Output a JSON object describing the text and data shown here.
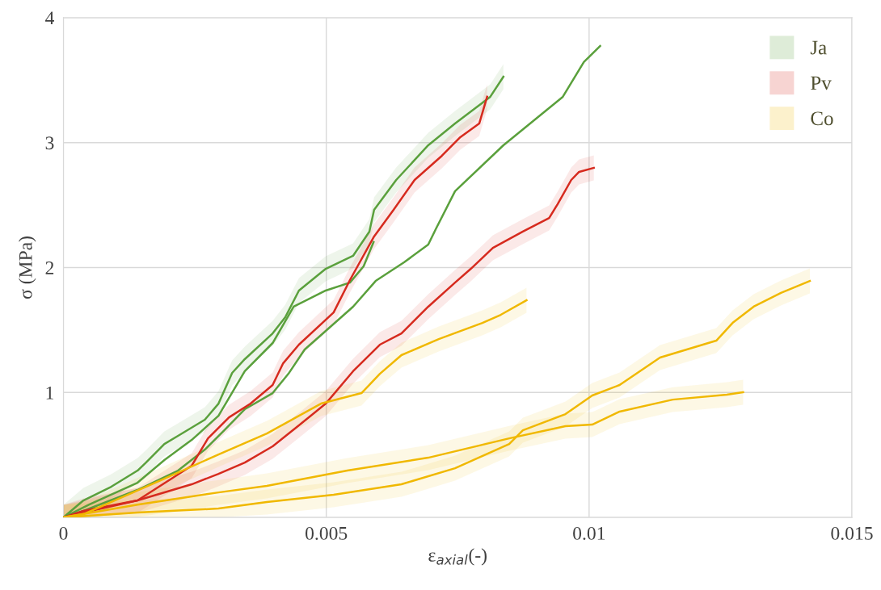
{
  "chart_data": {
    "type": "line",
    "xlabel": "ε$_{axial}$(-)",
    "ylabel": "σ (MPa)",
    "xlim": [
      0,
      0.015
    ],
    "ylim": [
      0,
      4
    ],
    "xticks": [
      0,
      0.005,
      0.01,
      0.015
    ],
    "yticks": [
      {
        "value": 0,
        "label": null
      },
      1,
      2,
      3,
      4
    ],
    "grid": true,
    "legend": "top right",
    "series": [
      {
        "name": "Ja",
        "color": "#5aa03c",
        "x": [
          0,
          0.00038,
          0.00091,
          0.00141,
          0.00157,
          0.00192,
          0.00218,
          0.00269,
          0.00295,
          0.00321,
          0.00345,
          0.00398,
          0.00422,
          0.00448,
          0.00499,
          0.00551,
          0.00582,
          0.00591,
          0.00633,
          0.00694,
          0.00745,
          0.00812,
          0.00837
        ],
        "values": [
          0,
          0.136,
          0.246,
          0.375,
          0.439,
          0.588,
          0.653,
          0.782,
          0.911,
          1.157,
          1.267,
          1.473,
          1.603,
          1.816,
          1.99,
          2.094,
          2.288,
          2.462,
          2.701,
          2.979,
          3.153,
          3.367,
          3.528
        ],
        "lower": [
          0,
          0.036,
          0.146,
          0.275,
          0.339,
          0.488,
          0.553,
          0.682,
          0.811,
          1.057,
          1.167,
          1.373,
          1.503,
          1.716,
          1.89,
          1.994,
          2.188,
          2.362,
          2.601,
          2.879,
          3.053,
          3.267,
          3.428
        ],
        "upper": [
          0.1,
          0.236,
          0.346,
          0.475,
          0.539,
          0.688,
          0.753,
          0.882,
          1.011,
          1.257,
          1.367,
          1.573,
          1.703,
          1.916,
          2.09,
          2.194,
          2.388,
          2.562,
          2.801,
          3.079,
          3.253,
          3.467,
          3.628
        ]
      },
      {
        "color": "#5aa03c",
        "x": [
          0,
          0.00049,
          0.00141,
          0.00192,
          0.00244,
          0.00295,
          0.00345,
          0.00398,
          0.00438,
          0.00499,
          0.00545,
          0.00571,
          0.0059
        ],
        "values": [
          0,
          0.103,
          0.278,
          0.459,
          0.62,
          0.814,
          1.17,
          1.396,
          1.687,
          1.816,
          1.88,
          2.01,
          2.204
        ]
      },
      {
        "color": "#5aa03c",
        "x": [
          0,
          0.00038,
          0.00141,
          0.00218,
          0.00269,
          0.00306,
          0.00345,
          0.00398,
          0.00428,
          0.00459,
          0.00499,
          0.00551,
          0.00594,
          0.00648,
          0.00694,
          0.00709,
          0.00745,
          0.00837,
          0.0095,
          0.0099,
          0.01021
        ],
        "values": [
          0,
          0.052,
          0.22,
          0.375,
          0.543,
          0.698,
          0.866,
          0.995,
          1.15,
          1.344,
          1.493,
          1.687,
          1.893,
          2.042,
          2.184,
          2.313,
          2.611,
          2.979,
          3.367,
          3.645,
          3.774
        ]
      },
      {
        "name": "Pv",
        "color": "#d62a1e",
        "x": [
          0,
          0.00038,
          0.00141,
          0.00244,
          0.00275,
          0.00315,
          0.00356,
          0.00398,
          0.00418,
          0.00448,
          0.00514,
          0.00545,
          0.00591,
          0.00628,
          0.00668,
          0.0072,
          0.00755,
          0.00791,
          0.00806
        ],
        "values": [
          0,
          0.052,
          0.136,
          0.414,
          0.633,
          0.801,
          0.911,
          1.06,
          1.234,
          1.383,
          1.641,
          1.9,
          2.249,
          2.462,
          2.701,
          2.895,
          3.044,
          3.153,
          3.367
        ],
        "lower": [
          0,
          0,
          0.036,
          0.314,
          0.533,
          0.701,
          0.811,
          0.96,
          1.134,
          1.283,
          1.541,
          1.8,
          2.149,
          2.362,
          2.601,
          2.795,
          2.944,
          3.053,
          3.267
        ],
        "upper": [
          0.1,
          0.152,
          0.236,
          0.514,
          0.733,
          0.901,
          1.011,
          1.16,
          1.334,
          1.483,
          1.741,
          2.0,
          2.349,
          2.562,
          2.801,
          2.995,
          3.144,
          3.253,
          3.467
        ]
      },
      {
        "color": "#d62a1e",
        "x": [
          0,
          0.00038,
          0.00141,
          0.00244,
          0.00295,
          0.00345,
          0.00398,
          0.00448,
          0.00499,
          0.00551,
          0.00602,
          0.00643,
          0.00694,
          0.00745,
          0.00775,
          0.00817,
          0.00874,
          0.00924,
          0.0094,
          0.00966,
          0.00981,
          0.01009
        ],
        "values": [
          0,
          0.039,
          0.136,
          0.265,
          0.349,
          0.439,
          0.569,
          0.737,
          0.911,
          1.17,
          1.383,
          1.473,
          1.687,
          1.88,
          1.99,
          2.158,
          2.288,
          2.397,
          2.507,
          2.701,
          2.766,
          2.798
        ],
        "lower": [
          0,
          0,
          0.036,
          0.165,
          0.249,
          0.339,
          0.469,
          0.637,
          0.811,
          1.07,
          1.283,
          1.373,
          1.587,
          1.78,
          1.89,
          2.058,
          2.188,
          2.297,
          2.407,
          2.601,
          2.666,
          2.698
        ],
        "upper": [
          0.1,
          0.139,
          0.236,
          0.365,
          0.449,
          0.539,
          0.669,
          0.837,
          1.011,
          1.27,
          1.483,
          1.573,
          1.787,
          1.98,
          2.09,
          2.258,
          2.388,
          2.497,
          2.607,
          2.801,
          2.866,
          2.898
        ]
      },
      {
        "name": "Co",
        "color": "#f0b800",
        "x": [
          0,
          0.00038,
          0.00192,
          0.00295,
          0.00387,
          0.0049,
          0.00567,
          0.00602,
          0.00643,
          0.00714,
          0.00797,
          0.00832,
          0.00881
        ],
        "values": [
          0,
          0.026,
          0.31,
          0.504,
          0.672,
          0.911,
          0.995,
          1.15,
          1.299,
          1.428,
          1.557,
          1.622,
          1.738
        ],
        "lower": [
          0,
          0,
          0.21,
          0.404,
          0.572,
          0.811,
          0.895,
          1.05,
          1.199,
          1.328,
          1.457,
          1.522,
          1.638
        ],
        "upper": [
          0.1,
          0.126,
          0.41,
          0.604,
          0.772,
          1.011,
          1.095,
          1.25,
          1.399,
          1.528,
          1.657,
          1.722,
          1.838
        ]
      },
      {
        "color": "#f0b800",
        "x": [
          0,
          0.00141,
          0.00295,
          0.00387,
          0.00514,
          0.00643,
          0.00745,
          0.00848,
          0.00874,
          0.00955,
          0.01006,
          0.01058,
          0.01135,
          0.01242,
          0.01273,
          0.01313,
          0.01365,
          0.0142
        ],
        "values": [
          0,
          0.039,
          0.071,
          0.123,
          0.181,
          0.265,
          0.394,
          0.588,
          0.698,
          0.827,
          0.976,
          1.06,
          1.28,
          1.415,
          1.557,
          1.687,
          1.797,
          1.893
        ],
        "lower": [
          0,
          0,
          0,
          0.023,
          0.081,
          0.165,
          0.294,
          0.488,
          0.598,
          0.727,
          0.876,
          0.96,
          1.18,
          1.315,
          1.457,
          1.587,
          1.697,
          1.793
        ],
        "upper": [
          0.1,
          0.139,
          0.171,
          0.223,
          0.281,
          0.365,
          0.494,
          0.688,
          0.798,
          0.927,
          1.076,
          1.16,
          1.38,
          1.515,
          1.657,
          1.787,
          1.897,
          1.993
        ]
      },
      {
        "color": "#f0b800",
        "x": [
          0,
          0.00141,
          0.00295,
          0.00387,
          0.0054,
          0.00694,
          0.00848,
          0.00955,
          0.01006,
          0.01058,
          0.01159,
          0.01262,
          0.01293
        ],
        "values": [
          0,
          0.103,
          0.2,
          0.252,
          0.375,
          0.478,
          0.633,
          0.73,
          0.743,
          0.847,
          0.943,
          0.982,
          1.002
        ],
        "lower": [
          0,
          0.003,
          0.1,
          0.152,
          0.275,
          0.378,
          0.533,
          0.63,
          0.643,
          0.747,
          0.843,
          0.882,
          0.902
        ],
        "upper": [
          0.1,
          0.203,
          0.3,
          0.352,
          0.475,
          0.578,
          0.733,
          0.83,
          0.843,
          0.947,
          1.043,
          1.082,
          1.102
        ]
      }
    ]
  }
}
